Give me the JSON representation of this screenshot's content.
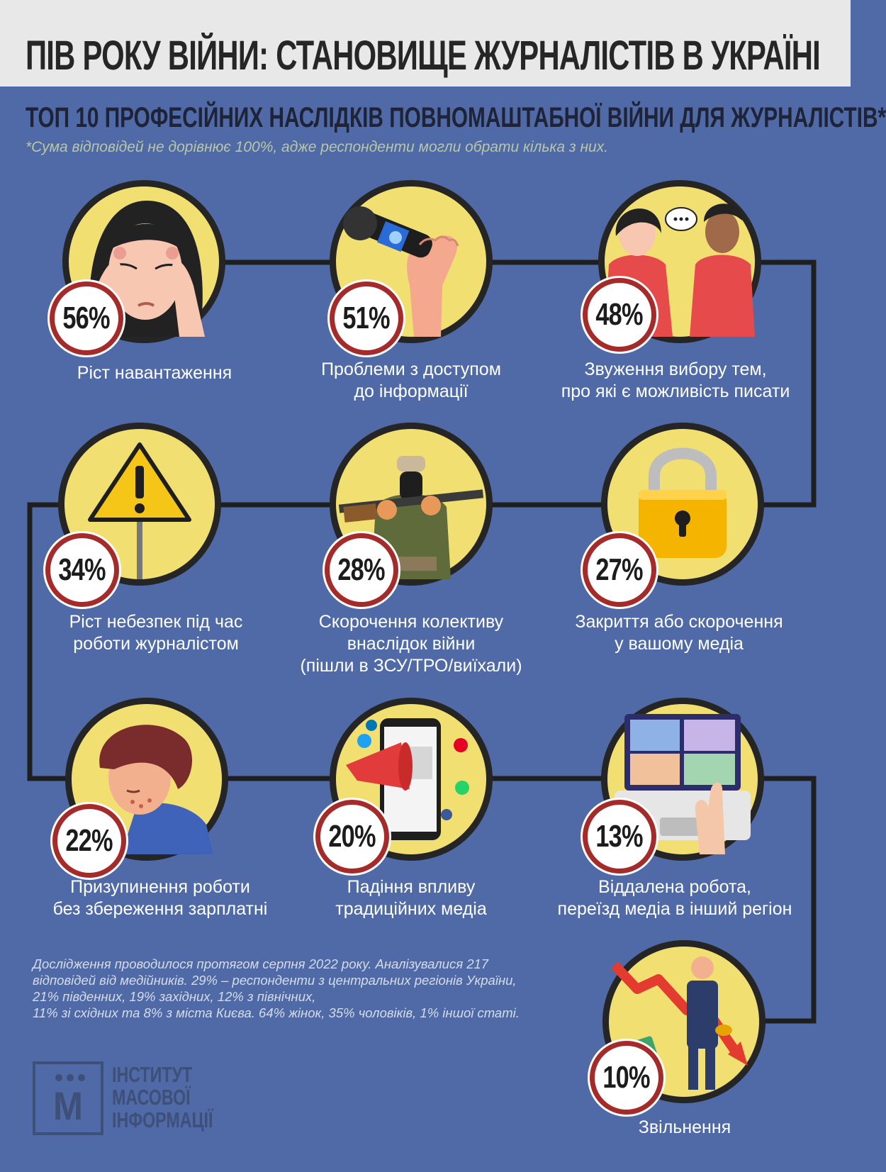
{
  "header": {
    "title": "ПІВ РОКУ ВІЙНИ: СТАНОВИЩЕ ЖУРНАЛІСТІВ В УКРАЇНІ",
    "subtitle": "ТОП 10 ПРОФЕСІЙНИХ НАСЛІДКІВ ПОВНОМАШТАБНОЇ ВІЙНИ ДЛЯ ЖУРНАЛІСТІВ*",
    "footnote": "*Сума відповідей не дорівнює 100%, адже респонденти могли обрати кілька з них."
  },
  "items": [
    {
      "percent": "56%",
      "label_lines": [
        "Ріст навантаження"
      ],
      "icon": "stressed-woman-icon"
    },
    {
      "percent": "51%",
      "label_lines": [
        "Проблеми з доступом",
        "до інформації"
      ],
      "icon": "microphone-fist-icon"
    },
    {
      "percent": "48%",
      "label_lines": [
        "Звуження вибору тем,",
        "про які є можливість писати"
      ],
      "icon": "conversation-people-icon"
    },
    {
      "percent": "34%",
      "label_lines": [
        "Ріст небезпек під час",
        "роботи журналістом"
      ],
      "icon": "warning-sign-icon"
    },
    {
      "percent": "28%",
      "label_lines": [
        "Скорочення колективу",
        "внаслідок війни",
        "(пішли в ЗСУ/ТРО/виїхали)"
      ],
      "icon": "soldier-icon"
    },
    {
      "percent": "27%",
      "label_lines": [
        "Закриття або скорочення",
        "у вашому медіа"
      ],
      "icon": "padlock-icon"
    },
    {
      "percent": "22%",
      "label_lines": [
        "Призупинення роботи",
        "без збереження зарплатні"
      ],
      "icon": "sad-man-icon"
    },
    {
      "percent": "20%",
      "label_lines": [
        "Падіння впливу",
        "традиційних медіа"
      ],
      "icon": "social-media-phone-icon"
    },
    {
      "percent": "13%",
      "label_lines": [
        "Віддалена робота,",
        "переїзд медіа в інший регіон"
      ],
      "icon": "video-call-laptop-icon"
    },
    {
      "percent": "10%",
      "label_lines": [
        "Звільнення"
      ],
      "icon": "falling-chart-man-icon"
    }
  ],
  "methodology": [
    "Дослідження проводилося протягом серпня 2022 року. Аналізувалися 217",
    "відповідей від медійників. 29% – респонденти з центральних регіонів України,",
    "21% південних, 19% західних, 12% з північних,",
    "11% зі східних та 8% з міста Києва. 64% жінок, 35% чоловіків, 1% іншої статі."
  ],
  "logo": {
    "letter": "M",
    "lines": [
      "ІНСТИТУТ",
      "МАСОВОЇ",
      "ІНФОРМАЦІЇ"
    ]
  },
  "colors": {
    "background": "#4f6aa6",
    "banner": "#e8e8e8",
    "circle_fill": "#f1e071",
    "badge_ring": "#a52a2a",
    "footnote_text": "#b9c7a4"
  }
}
